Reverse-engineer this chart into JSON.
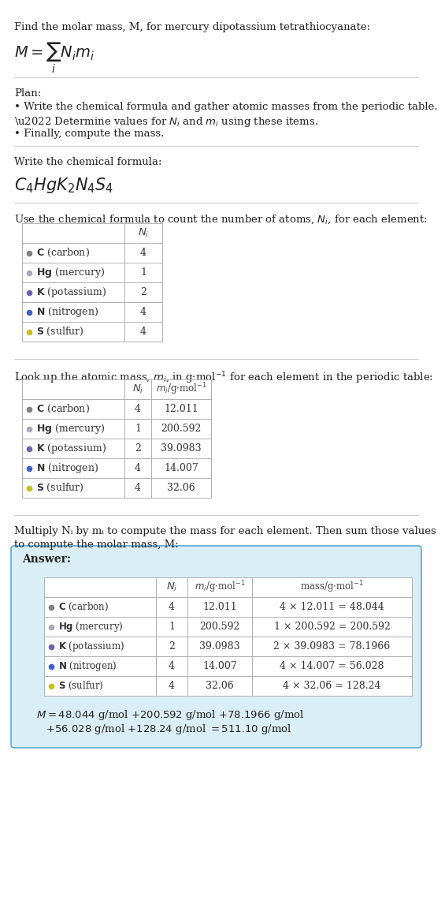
{
  "title_line": "Find the molar mass, M, for mercury dipotassium tetrathiocyanate:",
  "plan_label": "Plan:",
  "plan_bullets": [
    "• Write the chemical formula and gather atomic masses from the periodic table.",
    "• Determine values for Nᵢ and mᵢ using these items.",
    "• Finally, compute the mass."
  ],
  "formula_section_label": "Write the chemical formula:",
  "table1_intro": "Use the chemical formula to count the number of atoms, Nᵢ, for each element:",
  "table2_intro": "Look up the atomic mass, mᵢ, in g·mol⁻¹ for each element in the periodic table:",
  "table3_intro1": "Multiply Nᵢ by mᵢ to compute the mass for each element. Then sum those values",
  "table3_intro2": "to compute the molar mass, M:",
  "elements": [
    "C (carbon)",
    "Hg (mercury)",
    "K (potassium)",
    "N (nitrogen)",
    "S (sulfur)"
  ],
  "element_symbols": [
    "C",
    "Hg",
    "K",
    "N",
    "S"
  ],
  "element_names": [
    "carbon",
    "mercury",
    "potassium",
    "nitrogen",
    "sulfur"
  ],
  "dot_colors": [
    "#808080",
    "#a8a8b8",
    "#7060b0",
    "#4060c8",
    "#c8c020"
  ],
  "Ni": [
    4,
    1,
    2,
    4,
    4
  ],
  "mi": [
    "12.011",
    "200.592",
    "39.0983",
    "14.007",
    "32.06"
  ],
  "mass_expr": [
    "4 × 12.011 = 48.044",
    "1 × 200.592 = 200.592",
    "2 × 39.0983 = 78.1966",
    "4 × 14.007 = 56.028",
    "4 × 32.06 = 128.24"
  ],
  "final_eq_line1": "M = 48.044 g/mol + 200.592 g/mol + 78.1966 g/mol",
  "final_eq_line2": "    + 56.028 g/mol + 128.24 g/mol = 511.10 g/mol",
  "answer_box_color": "#daeef5",
  "answer_box_border": "#6aaed6",
  "table_border": "#b0b0b0",
  "bg_color": "#ffffff",
  "text_color": "#222222"
}
